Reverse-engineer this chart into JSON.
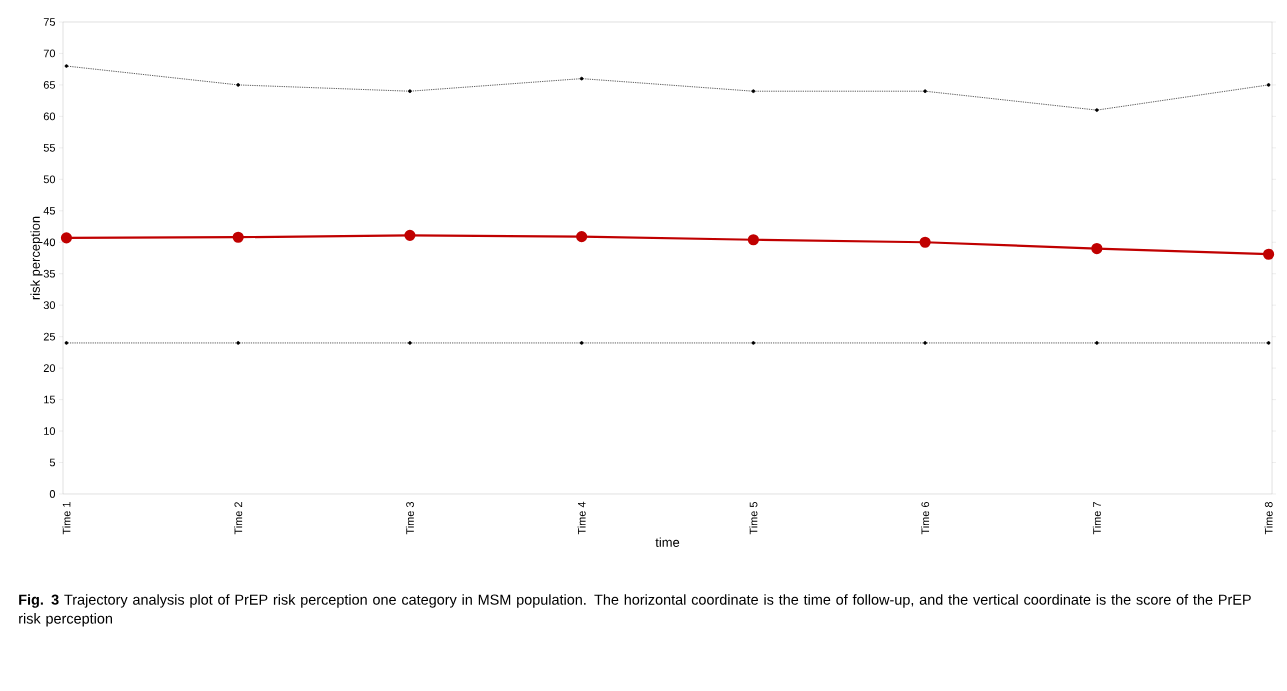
{
  "chart_data": {
    "type": "line",
    "xlabel": "time",
    "ylabel": "risk perception",
    "categories": [
      "Time 1",
      "Time 2",
      "Time 3",
      "Time 4",
      "Time 5",
      "Time 6",
      "Time 7",
      "Time 8"
    ],
    "series": [
      {
        "color": "#000000",
        "line_style": "dotted",
        "marker": "circle",
        "values": [
          68,
          65,
          64,
          66,
          64,
          64,
          61,
          65
        ]
      },
      {
        "color": "#000000",
        "line_style": "dotted",
        "marker": "circle",
        "values": [
          24,
          24,
          24,
          24,
          24,
          24,
          24,
          24
        ]
      },
      {
        "color": "#c00000",
        "line_style": "solid",
        "marker": "circle",
        "values": [
          40.7,
          40.8,
          41.1,
          40.9,
          40.4,
          40.0,
          39.0,
          38.1
        ]
      }
    ],
    "ylim": [
      0,
      75
    ],
    "yticks": [
      0,
      5,
      10,
      15,
      20,
      25,
      30,
      35,
      40,
      45,
      50,
      55,
      60,
      65,
      70,
      75
    ],
    "grid": false,
    "annotations": [
      "**Fig. 3** Trajectory analysis plot of PrEP risk perception one category in MSM population. The horizontal coordinate is the time of follow-up, and the vertical coordinate is the score of the PrEP risk perception"
    ]
  }
}
